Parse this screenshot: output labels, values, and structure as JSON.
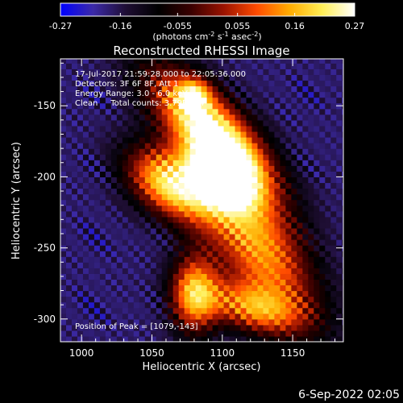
{
  "chart_data": {
    "type": "heatmap",
    "title": "Reconstructed RHESSI Image",
    "xlabel": "Heliocentric X (arcsec)",
    "ylabel": "Heliocentric Y (arcsec)",
    "xlim": [
      985,
      1186
    ],
    "ylim": [
      -316,
      -117
    ],
    "x_ticks": [
      1000,
      1050,
      1100,
      1150
    ],
    "y_ticks": [
      -150,
      -200,
      -250,
      -300
    ],
    "colorbar": {
      "range": [
        -0.27,
        0.27
      ],
      "tick_labels": [
        "-0.27",
        "-0.16",
        "-0.055",
        "0.055",
        "0.16",
        "0.27"
      ],
      "label_parts": [
        "(photons cm",
        "-2",
        " s",
        "-1",
        " asec",
        "-2",
        ")"
      ],
      "colorscale": [
        "#0000ff",
        "#3c2aa8",
        "#1f0e34",
        "#000000",
        "#3a0000",
        "#9b1300",
        "#ff4b00",
        "#ffab00",
        "#ffee55",
        "#ffffff"
      ]
    },
    "annotations": [
      "17-Jul-2017 21:59:28.000 to 22:05:36.000",
      "Detectors: 3F 6F 8F, Att 1",
      "Energy Range: 3.0 - 6.0 keV",
      "Clean     Total counts: 3.79E+04",
      "Position of Peak = [1079,-143]"
    ],
    "peak": {
      "x": 1079,
      "y": -143
    },
    "emission_model": {
      "background": -0.18,
      "sources": [
        {
          "x": 1092,
          "y": -168,
          "amp": 0.45,
          "sx": 40,
          "sy": 16,
          "angle": -45
        },
        {
          "x": 1062,
          "y": -205,
          "amp": 0.37,
          "sx": 24,
          "sy": 15,
          "angle": -35
        },
        {
          "x": 1100,
          "y": -200,
          "amp": 0.34,
          "sx": 18,
          "sy": 14,
          "angle": -40
        },
        {
          "x": 1125,
          "y": -248,
          "amp": 0.32,
          "sx": 44,
          "sy": 20,
          "angle": -55
        },
        {
          "x": 1080,
          "y": -282,
          "amp": 0.32,
          "sx": 12,
          "sy": 20,
          "angle": 0
        },
        {
          "x": 1120,
          "y": -292,
          "amp": 0.26,
          "sx": 26,
          "sy": 12,
          "angle": -15
        },
        {
          "x": 1080,
          "y": -142,
          "amp": 0.2,
          "sx": 8,
          "sy": 8,
          "angle": 0
        }
      ]
    }
  },
  "footer": {
    "date": "6-Sep-2022 02:05"
  }
}
